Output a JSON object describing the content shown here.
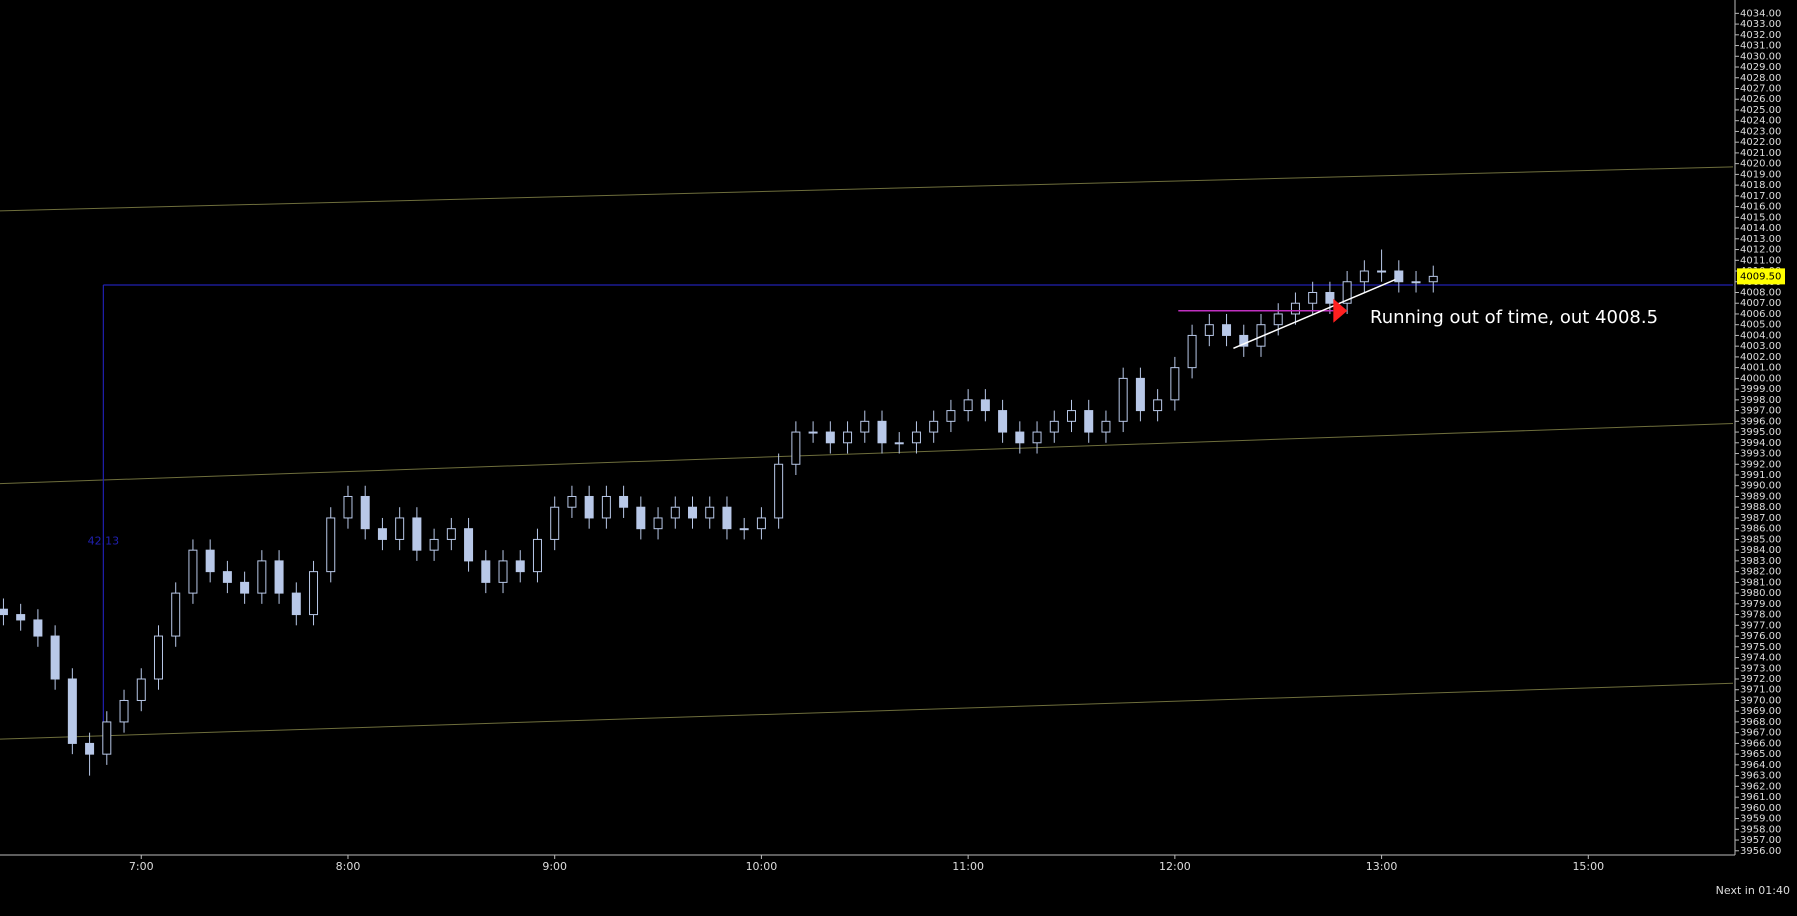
{
  "chart_data": {
    "type": "candlestick",
    "x": [
      "6:20",
      "6:25",
      "6:30",
      "6:35",
      "6:40",
      "6:45",
      "6:50",
      "6:55",
      "7:00",
      "7:05",
      "7:10",
      "7:15",
      "7:20",
      "7:25",
      "7:30",
      "7:35",
      "7:40",
      "7:45",
      "7:50",
      "7:55",
      "8:00",
      "8:05",
      "8:10",
      "8:15",
      "8:20",
      "8:25",
      "8:30",
      "8:35",
      "8:40",
      "8:45",
      "8:50",
      "8:55",
      "9:00",
      "9:05",
      "9:10",
      "9:15",
      "9:20",
      "9:25",
      "9:30",
      "9:35",
      "9:40",
      "9:45",
      "9:50",
      "9:55",
      "10:00",
      "10:05",
      "10:10",
      "10:15",
      "10:20",
      "10:25",
      "10:30",
      "10:35",
      "10:40",
      "10:45",
      "10:50",
      "10:55",
      "11:00",
      "11:05",
      "11:10",
      "11:15",
      "11:20",
      "11:25",
      "11:30",
      "11:35",
      "11:40",
      "11:45",
      "11:50",
      "11:55",
      "12:00",
      "12:05",
      "12:10",
      "12:15",
      "12:20",
      "12:25",
      "12:30",
      "12:35",
      "12:40",
      "12:45",
      "12:50",
      "12:55",
      "13:00",
      "13:05",
      "13:10",
      "13:15"
    ],
    "open": [
      3978.5,
      3978,
      3977.5,
      3976,
      3972,
      3966,
      3965,
      3968,
      3970,
      3972,
      3976,
      3980,
      3984,
      3982,
      3981,
      3980,
      3983,
      3980,
      3978,
      3982,
      3987,
      3989,
      3986,
      3985,
      3987,
      3984,
      3985,
      3986,
      3983,
      3981,
      3983,
      3982,
      3985,
      3988,
      3989,
      3987,
      3989,
      3988,
      3986,
      3987,
      3988,
      3987,
      3988,
      3986,
      3986,
      3987,
      3992,
      3995,
      3995,
      3994,
      3995,
      3996,
      3994,
      3994,
      3995,
      3996,
      3997,
      3998,
      3997,
      3995,
      3994,
      3995,
      3996,
      3997,
      3995,
      3996,
      4000,
      3997,
      3998,
      4001,
      4004,
      4005,
      4004,
      4003,
      4005,
      4006,
      4007,
      4008,
      4007,
      4009,
      4010,
      4010,
      4009,
      4009
    ],
    "high": [
      3979.5,
      3979,
      3978.5,
      3977,
      3973,
      3967,
      3969,
      3971,
      3973,
      3977,
      3981,
      3985,
      3985,
      3983,
      3982,
      3984,
      3984,
      3981,
      3983,
      3988,
      3990,
      3990,
      3987,
      3988,
      3988,
      3986,
      3987,
      3987,
      3984,
      3984,
      3984,
      3986,
      3989,
      3990,
      3990,
      3990,
      3990,
      3989,
      3988,
      3989,
      3989,
      3989,
      3989,
      3987,
      3988,
      3993,
      3996,
      3996,
      3996,
      3996,
      3997,
      3997,
      3995,
      3996,
      3997,
      3998,
      3999,
      3999,
      3998,
      3996,
      3996,
      3997,
      3998,
      3998,
      3997,
      4001,
      4001,
      3999,
      4002,
      4005,
      4006,
      4006,
      4005,
      4006,
      4007,
      4008,
      4009,
      4009,
      4010,
      4011,
      4012,
      4011,
      4010,
      4010.5
    ],
    "low": [
      3977,
      3976.5,
      3975,
      3971,
      3965,
      3963,
      3964,
      3967,
      3969,
      3971,
      3975,
      3979,
      3981,
      3980,
      3979,
      3979,
      3979,
      3977,
      3977,
      3981,
      3986,
      3985,
      3984,
      3984,
      3983,
      3983,
      3984,
      3982,
      3980,
      3980,
      3981,
      3981,
      3984,
      3987,
      3986,
      3986,
      3987,
      3985,
      3985,
      3986,
      3986,
      3986,
      3985,
      3985,
      3985,
      3986,
      3991,
      3994,
      3993,
      3993,
      3994,
      3993,
      3993,
      3993,
      3994,
      3995,
      3996,
      3996,
      3994,
      3993,
      3993,
      3994,
      3995,
      3994,
      3994,
      3995,
      3996,
      3996,
      3997,
      4000,
      4003,
      4003,
      4002,
      4002,
      4004,
      4005,
      4006,
      4006,
      4006,
      4008,
      4009,
      4008,
      4008,
      4008
    ],
    "close": [
      3978,
      3977.5,
      3976,
      3972,
      3966,
      3965,
      3968,
      3970,
      3972,
      3976,
      3980,
      3984,
      3982,
      3981,
      3980,
      3983,
      3980,
      3978,
      3982,
      3987,
      3989,
      3986,
      3985,
      3987,
      3984,
      3985,
      3986,
      3983,
      3981,
      3983,
      3982,
      3985,
      3988,
      3989,
      3987,
      3989,
      3988,
      3986,
      3987,
      3988,
      3987,
      3988,
      3986,
      3986,
      3987,
      3992,
      3995,
      3995,
      3994,
      3995,
      3996,
      3994,
      3994,
      3995,
      3996,
      3997,
      3998,
      3997,
      3995,
      3994,
      3995,
      3996,
      3997,
      3995,
      3996,
      4000,
      3997,
      3998,
      4001,
      4004,
      4005,
      4004,
      4003,
      4005,
      4006,
      4007,
      4008,
      4007,
      4009,
      4010,
      4010,
      4009,
      4009,
      4009.5
    ],
    "color": "#b8c8e8",
    "xlim": [
      "6:19",
      "15:42"
    ],
    "x_break": [
      "14:00",
      "15:00"
    ],
    "xticks": [
      "7:00",
      "8:00",
      "9:00",
      "10:00",
      "11:00",
      "12:00",
      "13:00",
      "15:00"
    ],
    "ylim": [
      3955.7,
      4034.6
    ],
    "yticks": [
      {
        "value": 3956,
        "label": "3956.00"
      },
      {
        "value": 3957,
        "label": "3957.00"
      },
      {
        "value": 3958,
        "label": "3958.00"
      },
      {
        "value": 3959,
        "label": "3959.00"
      },
      {
        "value": 3960,
        "label": "3960.00"
      },
      {
        "value": 3961,
        "label": "3961.00"
      },
      {
        "value": 3962,
        "label": "3962.00"
      },
      {
        "value": 3963,
        "label": "3963.00"
      },
      {
        "value": 3964,
        "label": "3964.00"
      },
      {
        "value": 3965,
        "label": "3965.00"
      },
      {
        "value": 3966,
        "label": "3966.00"
      },
      {
        "value": 3967,
        "label": "3967.00"
      },
      {
        "value": 3968,
        "label": "3968.00"
      },
      {
        "value": 3969,
        "label": "3969.00"
      },
      {
        "value": 3970,
        "label": "3970.00"
      },
      {
        "value": 3971,
        "label": "3971.00"
      },
      {
        "value": 3972,
        "label": "3972.00"
      },
      {
        "value": 3973,
        "label": "3973.00"
      },
      {
        "value": 3974,
        "label": "3974.00"
      },
      {
        "value": 3975,
        "label": "3975.00"
      },
      {
        "value": 3976,
        "label": "3976.00"
      },
      {
        "value": 3977,
        "label": "3977.00"
      },
      {
        "value": 3978,
        "label": "3978.00"
      },
      {
        "value": 3979,
        "label": "3979.00"
      },
      {
        "value": 3980,
        "label": "3980.00"
      },
      {
        "value": 3981,
        "label": "3981.00"
      },
      {
        "value": 3982,
        "label": "3982.00"
      },
      {
        "value": 3983,
        "label": "3983.00"
      },
      {
        "value": 3984,
        "label": "3984.00"
      },
      {
        "value": 3985,
        "label": "3985.00"
      },
      {
        "value": 3986,
        "label": "3986.00"
      },
      {
        "value": 3987,
        "label": "3987.00"
      },
      {
        "value": 3988,
        "label": "3988.00"
      },
      {
        "value": 3989,
        "label": "3989.00"
      },
      {
        "value": 3990,
        "label": "3990.00"
      },
      {
        "value": 3991,
        "label": "3991.00"
      },
      {
        "value": 3992,
        "label": "3992.00"
      },
      {
        "value": 3993,
        "label": "3993.00"
      },
      {
        "value": 3994,
        "label": "3994.00"
      },
      {
        "value": 3995,
        "label": "3995.00"
      },
      {
        "value": 3996,
        "label": "3996.00"
      },
      {
        "value": 3997,
        "label": "3997.00"
      },
      {
        "value": 3998,
        "label": "3998.00"
      },
      {
        "value": 3999,
        "label": "3999.00"
      },
      {
        "value": 4000,
        "label": "4000.00"
      },
      {
        "value": 4001,
        "label": "4001.00"
      },
      {
        "value": 4002,
        "label": "4002.00"
      },
      {
        "value": 4003,
        "label": "4003.00"
      },
      {
        "value": 4004,
        "label": "4004.00"
      },
      {
        "value": 4005,
        "label": "4005.00"
      },
      {
        "value": 4006,
        "label": "4006.00"
      },
      {
        "value": 4007,
        "label": "4007.00"
      },
      {
        "value": 4008,
        "label": "4008.00"
      },
      {
        "value": 4009,
        "label": "4009.00"
      },
      {
        "value": 4010,
        "label": "4010.00"
      },
      {
        "value": 4011,
        "label": "4011.00"
      },
      {
        "value": 4012,
        "label": "4012.00"
      },
      {
        "value": 4013,
        "label": "4013.00"
      },
      {
        "value": 4014,
        "label": "4014.00"
      },
      {
        "value": 4015,
        "label": "4015.00"
      },
      {
        "value": 4016,
        "label": "4016.00"
      },
      {
        "value": 4017,
        "label": "4017.00"
      },
      {
        "value": 4018,
        "label": "4018.00"
      },
      {
        "value": 4019,
        "label": "4019.00"
      },
      {
        "value": 4020,
        "label": "4020.00"
      },
      {
        "value": 4021,
        "label": "4021.00"
      },
      {
        "value": 4022,
        "label": "4022.00"
      },
      {
        "value": 4023,
        "label": "4023.00"
      },
      {
        "value": 4024,
        "label": "4024.00"
      },
      {
        "value": 4025,
        "label": "4025.00"
      },
      {
        "value": 4026,
        "label": "4026.00"
      },
      {
        "value": 4027,
        "label": "4027.00"
      },
      {
        "value": 4028,
        "label": "4028.00"
      },
      {
        "value": 4029,
        "label": "4029.00"
      },
      {
        "value": 4030,
        "label": "4030.00"
      },
      {
        "value": 4031,
        "label": "4031.00"
      },
      {
        "value": 4032,
        "label": "4032.00"
      },
      {
        "value": 4033,
        "label": "4033.00"
      },
      {
        "value": 4034,
        "label": "4034.00"
      }
    ],
    "bands": [
      [
        4015.6,
        4019.7
      ],
      [
        3990.2,
        3995.8
      ],
      [
        3966.4,
        3971.6
      ]
    ],
    "band_color": "#6e6e3c",
    "level": {
      "price": 4008.7,
      "from": "6:49",
      "low": 3966.5,
      "label": "42.13",
      "color": "#2020b0"
    },
    "hline": {
      "price": 4006.3,
      "from": "12:01",
      "to": "12:46",
      "color": "#c030c0"
    },
    "trendline": {
      "from": [
        "12:17",
        4002.8
      ],
      "to": [
        "13:04",
        4009.2
      ],
      "color": "#ffffff"
    },
    "marker": {
      "x": "12:46",
      "price": 4006.3,
      "color": "#ff2020"
    },
    "last_price": {
      "value": 4009.5,
      "label": "4009.50"
    },
    "annotation": "Running out of time, out 4008.5",
    "footer": "Next in 01:40"
  }
}
